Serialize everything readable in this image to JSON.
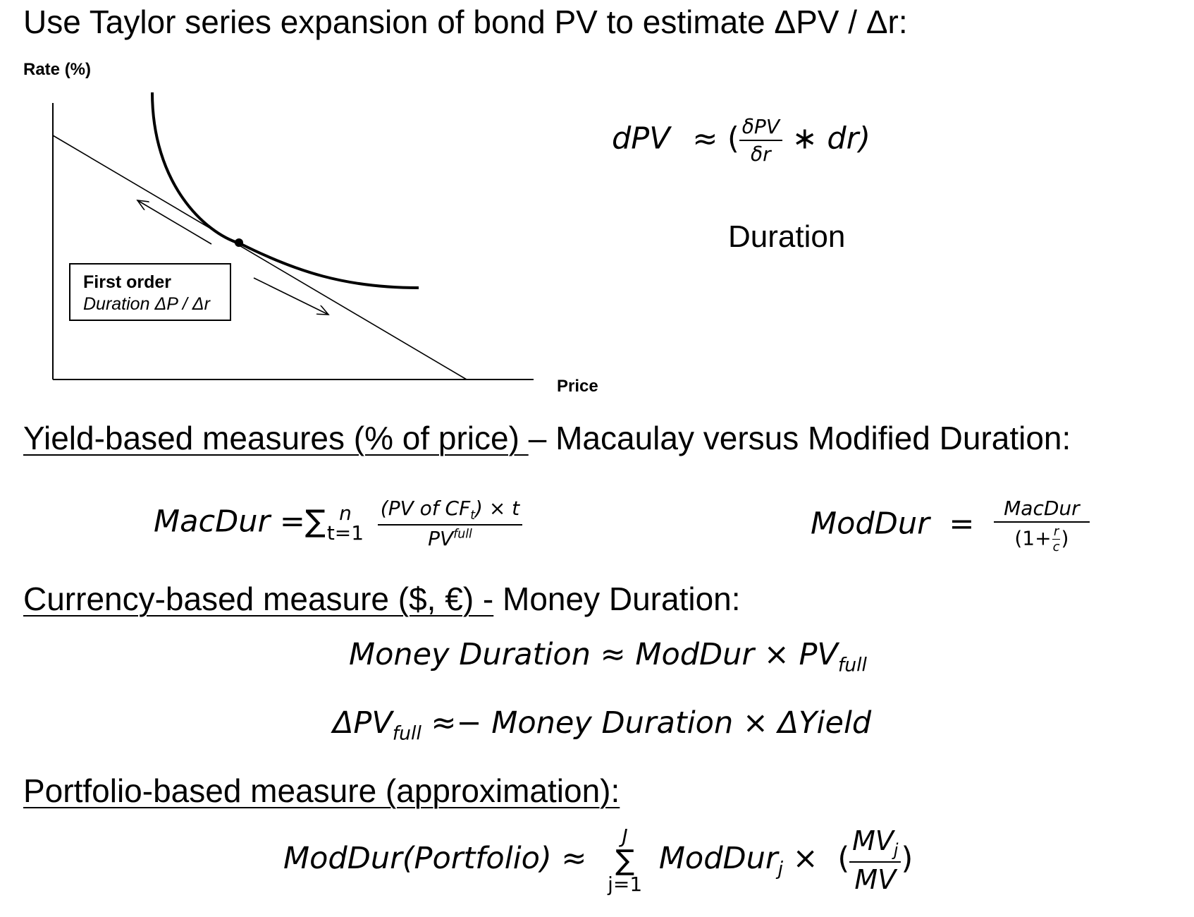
{
  "header": {
    "title": "Use Taylor series expansion of bond PV to estimate ΔPV / Δr:"
  },
  "graph": {
    "y_axis_label": "Rate (%)",
    "x_axis_label": "Price",
    "box_line1": "First order",
    "box_line2": "Duration ΔP / Δr"
  },
  "taylor": {
    "lhs": "dPV",
    "approx": "≈",
    "open": "(",
    "num": "δPV",
    "den": "δr",
    "tail": "∗ dr)",
    "caption": "Duration"
  },
  "yield_section": {
    "heading_underlined": "Yield-based measures (% of price) ",
    "heading_rest": "– Macaulay versus Modified Duration:"
  },
  "macdur": {
    "lhs": "MacDur",
    "eq": "=",
    "sum": "∑",
    "sum_upper": "n",
    "sum_lower": "t=1",
    "num_a": "(PV of CF",
    "num_sub": "t",
    "num_b": ") × t",
    "den_a": "PV",
    "den_sup": "full"
  },
  "moddur": {
    "lhs": "ModDur",
    "eq": "=",
    "num": "MacDur",
    "den_a": "(1+",
    "den_r": "r",
    "den_c": "c",
    "den_b": ")"
  },
  "currency_section": {
    "heading_underlined": "Currency-based measure ($, €) -",
    "heading_rest": " Money Duration:"
  },
  "money_eq1": {
    "a": "Money Duration ≈ ModDur × PV",
    "sub": "full"
  },
  "money_eq2": {
    "a": "ΔPV",
    "sub": "full",
    "b": " ≈− Money Duration × ΔYield"
  },
  "portfolio_section": {
    "heading_underlined": "Portfolio-based measure (approximation):"
  },
  "portfolio_eq": {
    "lhs": "ModDur(Portfolio) ≈",
    "sum": "∑",
    "sum_upper": "J",
    "sum_lower": "j=1",
    "term": "ModDur",
    "term_sub": "j",
    "times": "×",
    "open": "(",
    "num": "MV",
    "num_sub": "j",
    "den": "MV",
    "close": ")"
  }
}
